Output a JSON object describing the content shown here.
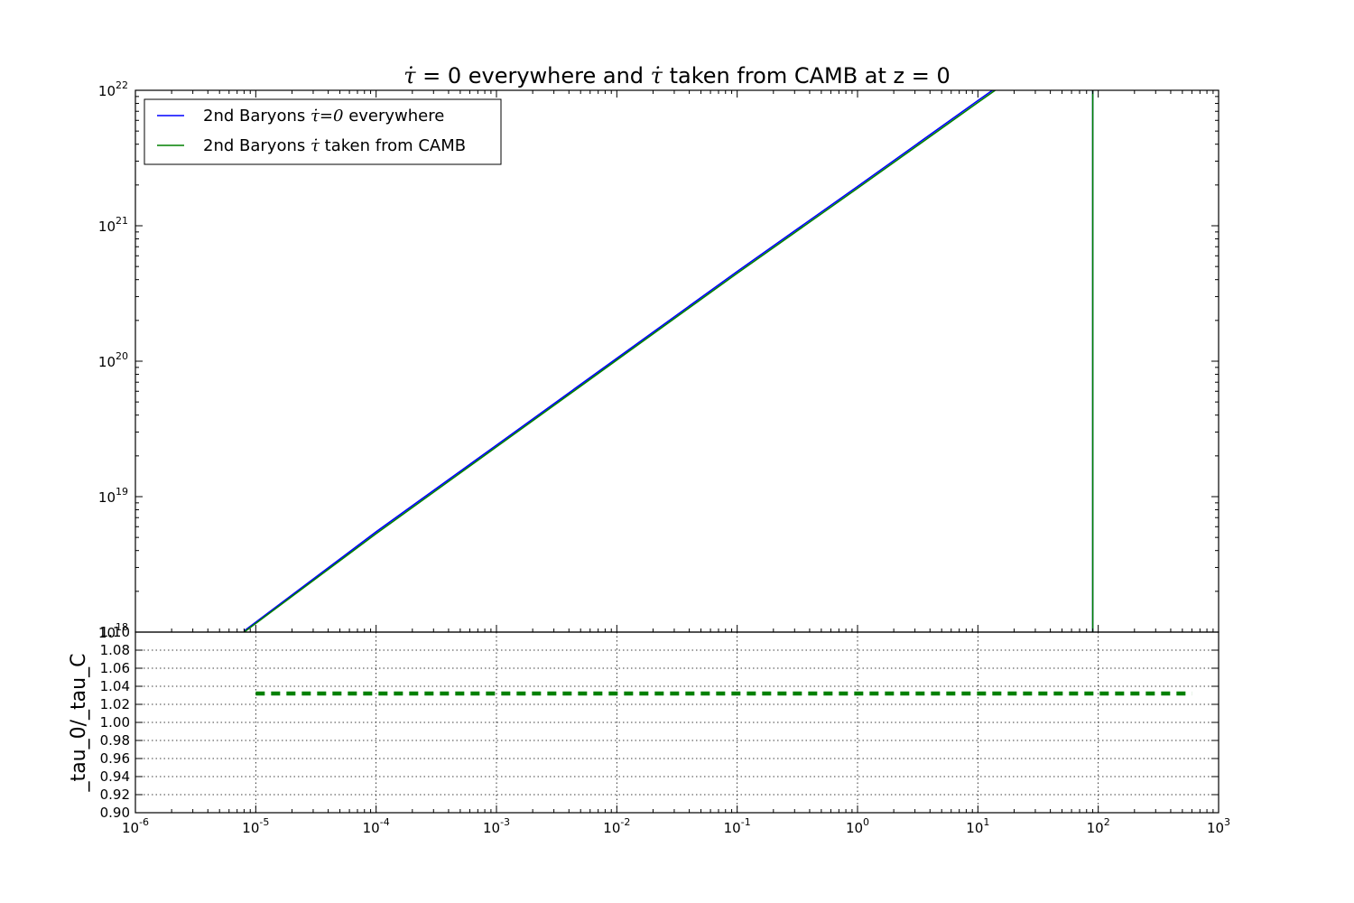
{
  "chart_data": [
    {
      "type": "line",
      "title": "τ̇ = 0 everywhere and τ̇  taken from CAMB at z = 0",
      "x_scale": "log",
      "y_scale": "log",
      "xlim": [
        1e-06,
        1000
      ],
      "ylim": [
        1e+18,
        1e+22
      ],
      "y_ticks": [
        {
          "value": 1e+18,
          "base": "10",
          "exp": "18"
        },
        {
          "value": 1e+19,
          "base": "10",
          "exp": "19"
        },
        {
          "value": 1e+20,
          "base": "10",
          "exp": "20"
        },
        {
          "value": 1e+21,
          "base": "10",
          "exp": "21"
        },
        {
          "value": 1e+22,
          "base": "10",
          "exp": "22"
        }
      ],
      "grid": false,
      "legend_position": "upper-left",
      "series": [
        {
          "name": "2nd Baryons τ̇=0 everywhere",
          "legend_prefix": "2nd Baryons ",
          "legend_math": "τ̇=0",
          "legend_suffix": " everywhere",
          "color": "#0000ff",
          "x": [
            8e-06,
            0.0001,
            0.001,
            0.01,
            0.1,
            1,
            10,
            50,
            90,
            90
          ],
          "y": [
            1.02e+18,
            5.5e+18,
            2.4e+19,
            1.05e+20,
            4.6e+20,
            1.95e+21,
            8.4e+21,
            2.3e+22,
            3.1e+22,
            1e+18
          ]
        },
        {
          "name": "2nd Baryons τ̇ taken from CAMB",
          "legend_prefix": "2nd Baryons ",
          "legend_math": "τ̇",
          "legend_suffix": " taken from CAMB",
          "color": "#008000",
          "x": [
            8e-06,
            0.0001,
            0.001,
            0.01,
            0.1,
            1,
            10,
            50,
            90,
            90
          ],
          "y": [
            9.9e+17,
            5.33e+18,
            2.33e+19,
            1.02e+20,
            4.46e+20,
            1.89e+21,
            8.13e+21,
            2.23e+22,
            3e+22,
            1e+18
          ]
        }
      ]
    },
    {
      "type": "line",
      "ylabel": "_tau_0/_tau_C",
      "x_scale": "log",
      "xlim": [
        1e-06,
        1000
      ],
      "ylim": [
        0.9,
        1.1
      ],
      "x_ticks": [
        {
          "value": 1e-06,
          "base": "10",
          "exp": "-6"
        },
        {
          "value": 1e-05,
          "base": "10",
          "exp": "-5"
        },
        {
          "value": 0.0001,
          "base": "10",
          "exp": "-4"
        },
        {
          "value": 0.001,
          "base": "10",
          "exp": "-3"
        },
        {
          "value": 0.01,
          "base": "10",
          "exp": "-2"
        },
        {
          "value": 0.1,
          "base": "10",
          "exp": "-1"
        },
        {
          "value": 1,
          "base": "10",
          "exp": "0"
        },
        {
          "value": 10,
          "base": "10",
          "exp": "1"
        },
        {
          "value": 100,
          "base": "10",
          "exp": "2"
        },
        {
          "value": 1000,
          "base": "10",
          "exp": "3"
        }
      ],
      "y_ticks": [
        "0.90",
        "0.92",
        "0.94",
        "0.96",
        "0.98",
        "1.00",
        "1.02",
        "1.04",
        "1.06",
        "1.08",
        "1.10"
      ],
      "grid": true,
      "series": [
        {
          "color": "#008000",
          "line_style": "dashed",
          "x": [
            1e-05,
            600
          ],
          "y": [
            1.032,
            1.032
          ]
        }
      ]
    }
  ]
}
